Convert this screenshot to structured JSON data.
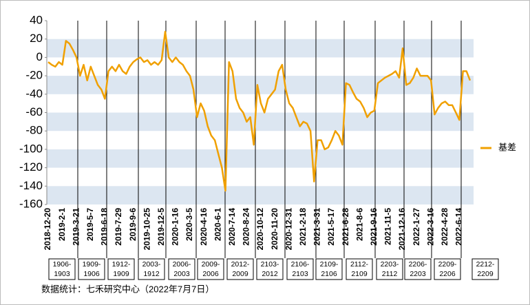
{
  "chart_data": {
    "type": "line",
    "categories": [
      "2018-12-20",
      null,
      null,
      null,
      "2019-2-1",
      null,
      null,
      null,
      "2019-3-21",
      null,
      null,
      null,
      "2019-5-7",
      null,
      null,
      null,
      "2019-6-18",
      null,
      null,
      null,
      "2019-7-29",
      null,
      null,
      null,
      "2019-9-6",
      null,
      null,
      null,
      "2019-10-25",
      null,
      null,
      null,
      "2019-12-5",
      null,
      null,
      null,
      "2020-1-16",
      null,
      null,
      null,
      "2020-3-5",
      null,
      null,
      null,
      "2020-4-16",
      null,
      null,
      null,
      "2020-6-1",
      null,
      null,
      null,
      "2020-7-14",
      null,
      null,
      null,
      "2020-8-24",
      null,
      null,
      null,
      "2020-10-12",
      null,
      null,
      null,
      "2020-11-20",
      null,
      null,
      null,
      "2020-12-31",
      null,
      null,
      null,
      "2021-2-18",
      null,
      null,
      null,
      "2021-3-31",
      null,
      null,
      null,
      "2021-5-17",
      null,
      null,
      null,
      "2021-6-28",
      null,
      null,
      null,
      "2021-8-6",
      null,
      null,
      null,
      "2021-9-16",
      null,
      null,
      null,
      "2021-11-5",
      null,
      null,
      null,
      "2021-12-16",
      null,
      null,
      null,
      "2022-1-27",
      null,
      null,
      null,
      "2022-3-16",
      null,
      null,
      null,
      "2022-4-28",
      null,
      null,
      null,
      "2022-6-14",
      null,
      null,
      null
    ],
    "series": [
      {
        "name": "基差",
        "color": "#f0a000",
        "values": [
          -5,
          -8,
          -10,
          -5,
          -8,
          18,
          15,
          8,
          0,
          -20,
          -8,
          -25,
          -10,
          -20,
          -30,
          -35,
          -45,
          -15,
          -10,
          -15,
          -8,
          -15,
          -18,
          -10,
          -5,
          -2,
          0,
          -5,
          -3,
          -8,
          -5,
          -8,
          -3,
          28,
          0,
          -5,
          0,
          -5,
          -8,
          -15,
          -20,
          -35,
          -65,
          -50,
          -58,
          -75,
          -85,
          -90,
          -105,
          -120,
          -145,
          -5,
          -15,
          -45,
          -55,
          -60,
          -70,
          -65,
          -95,
          -30,
          -50,
          -60,
          -45,
          -40,
          -35,
          -15,
          -8,
          -35,
          -50,
          -55,
          -65,
          -75,
          -70,
          -72,
          -80,
          -135,
          -90,
          -90,
          -100,
          -98,
          -90,
          -80,
          -85,
          -95,
          -28,
          -30,
          -38,
          -45,
          -48,
          -55,
          -65,
          -60,
          -58,
          -28,
          -25,
          -22,
          -20,
          -18,
          -15,
          -22,
          10,
          -30,
          -28,
          -22,
          -12,
          -20,
          -20,
          -20,
          -25,
          -62,
          -55,
          -50,
          -48,
          -52,
          -52,
          -60,
          -68,
          -15,
          -15,
          -25
        ]
      }
    ],
    "ylim": [
      -160,
      40
    ],
    "yticks": [
      40,
      20,
      0,
      -20,
      -40,
      -60,
      -80,
      -100,
      -120,
      -140,
      -160
    ],
    "annotations": [
      [
        "1906-",
        "1903"
      ],
      [
        "1909-",
        "1906"
      ],
      [
        "1912-",
        "1909"
      ],
      [
        "2003-",
        "1912"
      ],
      [
        "2006-",
        "2003"
      ],
      [
        "2009-",
        "2006"
      ],
      [
        "2012-",
        "2009"
      ],
      [
        "2103-",
        "2012"
      ],
      [
        "2106-",
        "2103"
      ],
      [
        "2109-",
        "2106"
      ],
      [
        "2112-",
        "2109"
      ],
      [
        "2203-",
        "2112"
      ],
      [
        "2206-",
        "2203"
      ],
      [
        "2209-",
        "2206"
      ],
      [
        "2212-",
        "2209"
      ]
    ],
    "source": "数据统计：七禾研究中心（2022年7月7日）"
  }
}
